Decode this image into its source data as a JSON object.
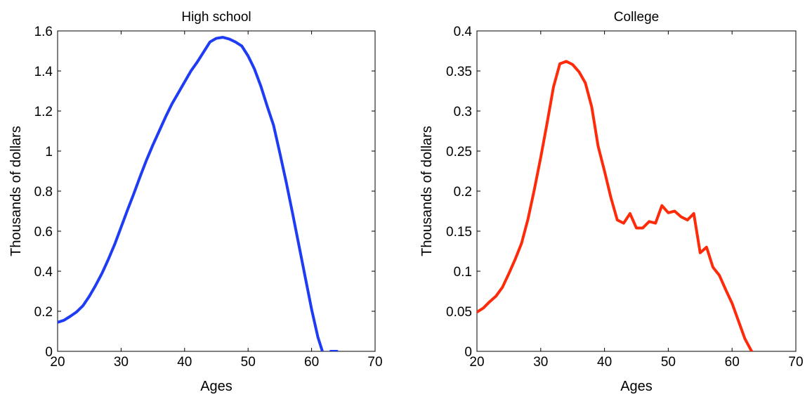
{
  "chart_data": [
    {
      "type": "line",
      "title": "High school",
      "xlabel": "Ages",
      "ylabel": "Thousands of dollars",
      "xlim": [
        20,
        70
      ],
      "ylim": [
        0,
        1.6
      ],
      "xticks": [
        20,
        30,
        40,
        50,
        60,
        70
      ],
      "xtick_labels": [
        "20",
        "30",
        "40",
        "50",
        "60",
        "70"
      ],
      "yticks": [
        0,
        0.2,
        0.4,
        0.6,
        0.8,
        1,
        1.2,
        1.4,
        1.6
      ],
      "ytick_labels": [
        "0",
        "0.2",
        "0.4",
        "0.6",
        "0.8",
        "1",
        "1.2",
        "1.4",
        "1.6"
      ],
      "grid": false,
      "series": [
        {
          "color": "#1f3cf5",
          "x": [
            20,
            21,
            22,
            23,
            24,
            25,
            26,
            27,
            28,
            29,
            30,
            31,
            32,
            33,
            34,
            35,
            36,
            37,
            38,
            39,
            40,
            41,
            42,
            43,
            44,
            45,
            46,
            47,
            48,
            49,
            50,
            51,
            52,
            53,
            54,
            55,
            56,
            57,
            58,
            59,
            60,
            61,
            62,
            63,
            64
          ],
          "y": [
            0.145,
            0.155,
            0.175,
            0.197,
            0.228,
            0.275,
            0.33,
            0.39,
            0.46,
            0.535,
            0.62,
            0.705,
            0.787,
            0.873,
            0.955,
            1.03,
            1.1,
            1.17,
            1.235,
            1.29,
            1.345,
            1.4,
            1.445,
            1.495,
            1.545,
            1.563,
            1.568,
            1.56,
            1.545,
            1.525,
            1.475,
            1.41,
            1.325,
            1.225,
            1.13,
            0.99,
            0.845,
            0.69,
            0.53,
            0.37,
            0.21,
            0.07,
            -0.03,
            0,
            0
          ]
        }
      ]
    },
    {
      "type": "line",
      "title": "College",
      "xlabel": "Ages",
      "ylabel": "Thousands of dollars",
      "xlim": [
        20,
        70
      ],
      "ylim": [
        0,
        0.4
      ],
      "xticks": [
        20,
        30,
        40,
        50,
        60,
        70
      ],
      "xtick_labels": [
        "20",
        "30",
        "40",
        "50",
        "60",
        "70"
      ],
      "yticks": [
        0,
        0.05,
        0.1,
        0.15,
        0.2,
        0.25,
        0.3,
        0.35,
        0.4
      ],
      "ytick_labels": [
        "0",
        "0.05",
        "0.1",
        "0.15",
        "0.2",
        "0.25",
        "0.3",
        "0.35",
        "0.4"
      ],
      "grid": false,
      "series": [
        {
          "color": "#ff2a0a",
          "x": [
            20,
            21,
            22,
            23,
            24,
            25,
            26,
            27,
            28,
            29,
            30,
            31,
            32,
            33,
            34,
            35,
            36,
            37,
            38,
            39,
            40,
            41,
            42,
            43,
            44,
            45,
            46,
            47,
            48,
            49,
            50,
            51,
            52,
            53,
            54,
            55,
            56,
            57,
            58,
            59,
            60,
            61,
            62,
            63,
            64
          ],
          "y": [
            0.049,
            0.054,
            0.062,
            0.069,
            0.08,
            0.097,
            0.115,
            0.135,
            0.165,
            0.202,
            0.242,
            0.285,
            0.33,
            0.359,
            0.362,
            0.358,
            0.349,
            0.335,
            0.305,
            0.256,
            0.225,
            0.192,
            0.164,
            0.16,
            0.172,
            0.154,
            0.154,
            0.162,
            0.16,
            0.182,
            0.173,
            0.175,
            0.168,
            0.164,
            0.172,
            0.123,
            0.13,
            0.105,
            0.095,
            0.077,
            0.06,
            0.038,
            0.016,
            0.001,
            -0.01
          ]
        }
      ]
    }
  ]
}
